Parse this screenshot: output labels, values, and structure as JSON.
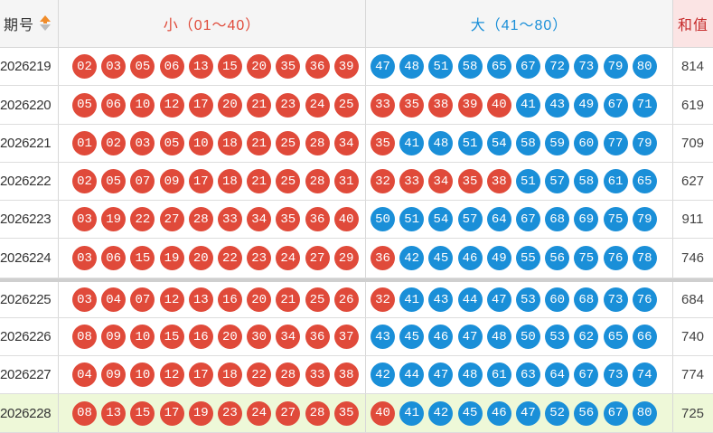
{
  "header": {
    "period_label": "期号",
    "small_label": "小（01～40）",
    "big_label": "大（41～80）",
    "sum_label": "和值"
  },
  "colors": {
    "red": "#e04a3a",
    "blue": "#1a8fd8"
  },
  "rows": [
    {
      "period": "2026219",
      "sum": "814",
      "small": [
        {
          "n": "02",
          "c": "r"
        },
        {
          "n": "03",
          "c": "r"
        },
        {
          "n": "05",
          "c": "r"
        },
        {
          "n": "06",
          "c": "r"
        },
        {
          "n": "13",
          "c": "r"
        },
        {
          "n": "15",
          "c": "r"
        },
        {
          "n": "20",
          "c": "r"
        },
        {
          "n": "35",
          "c": "r"
        },
        {
          "n": "36",
          "c": "r"
        },
        {
          "n": "39",
          "c": "r"
        }
      ],
      "big": [
        {
          "n": "47",
          "c": "b"
        },
        {
          "n": "48",
          "c": "b"
        },
        {
          "n": "51",
          "c": "b"
        },
        {
          "n": "58",
          "c": "b"
        },
        {
          "n": "65",
          "c": "b"
        },
        {
          "n": "67",
          "c": "b"
        },
        {
          "n": "72",
          "c": "b"
        },
        {
          "n": "73",
          "c": "b"
        },
        {
          "n": "79",
          "c": "b"
        },
        {
          "n": "80",
          "c": "b"
        }
      ]
    },
    {
      "period": "2026220",
      "sum": "619",
      "small": [
        {
          "n": "05",
          "c": "r"
        },
        {
          "n": "06",
          "c": "r"
        },
        {
          "n": "10",
          "c": "r"
        },
        {
          "n": "12",
          "c": "r"
        },
        {
          "n": "17",
          "c": "r"
        },
        {
          "n": "20",
          "c": "r"
        },
        {
          "n": "21",
          "c": "r"
        },
        {
          "n": "23",
          "c": "r"
        },
        {
          "n": "24",
          "c": "r"
        },
        {
          "n": "25",
          "c": "r"
        }
      ],
      "big": [
        {
          "n": "33",
          "c": "r"
        },
        {
          "n": "35",
          "c": "r"
        },
        {
          "n": "38",
          "c": "r"
        },
        {
          "n": "39",
          "c": "r"
        },
        {
          "n": "40",
          "c": "r"
        },
        {
          "n": "41",
          "c": "b"
        },
        {
          "n": "43",
          "c": "b"
        },
        {
          "n": "49",
          "c": "b"
        },
        {
          "n": "67",
          "c": "b"
        },
        {
          "n": "71",
          "c": "b"
        }
      ]
    },
    {
      "period": "2026221",
      "sum": "709",
      "small": [
        {
          "n": "01",
          "c": "r"
        },
        {
          "n": "02",
          "c": "r"
        },
        {
          "n": "03",
          "c": "r"
        },
        {
          "n": "05",
          "c": "r"
        },
        {
          "n": "10",
          "c": "r"
        },
        {
          "n": "18",
          "c": "r"
        },
        {
          "n": "21",
          "c": "r"
        },
        {
          "n": "25",
          "c": "r"
        },
        {
          "n": "28",
          "c": "r"
        },
        {
          "n": "34",
          "c": "r"
        }
      ],
      "big": [
        {
          "n": "35",
          "c": "r"
        },
        {
          "n": "41",
          "c": "b"
        },
        {
          "n": "48",
          "c": "b"
        },
        {
          "n": "51",
          "c": "b"
        },
        {
          "n": "54",
          "c": "b"
        },
        {
          "n": "58",
          "c": "b"
        },
        {
          "n": "59",
          "c": "b"
        },
        {
          "n": "60",
          "c": "b"
        },
        {
          "n": "77",
          "c": "b"
        },
        {
          "n": "79",
          "c": "b"
        }
      ]
    },
    {
      "period": "2026222",
      "sum": "627",
      "small": [
        {
          "n": "02",
          "c": "r"
        },
        {
          "n": "05",
          "c": "r"
        },
        {
          "n": "07",
          "c": "r"
        },
        {
          "n": "09",
          "c": "r"
        },
        {
          "n": "17",
          "c": "r"
        },
        {
          "n": "18",
          "c": "r"
        },
        {
          "n": "21",
          "c": "r"
        },
        {
          "n": "25",
          "c": "r"
        },
        {
          "n": "28",
          "c": "r"
        },
        {
          "n": "31",
          "c": "r"
        }
      ],
      "big": [
        {
          "n": "32",
          "c": "r"
        },
        {
          "n": "33",
          "c": "r"
        },
        {
          "n": "34",
          "c": "r"
        },
        {
          "n": "35",
          "c": "r"
        },
        {
          "n": "38",
          "c": "r"
        },
        {
          "n": "51",
          "c": "b"
        },
        {
          "n": "57",
          "c": "b"
        },
        {
          "n": "58",
          "c": "b"
        },
        {
          "n": "61",
          "c": "b"
        },
        {
          "n": "65",
          "c": "b"
        }
      ]
    },
    {
      "period": "2026223",
      "sum": "911",
      "small": [
        {
          "n": "03",
          "c": "r"
        },
        {
          "n": "19",
          "c": "r"
        },
        {
          "n": "22",
          "c": "r"
        },
        {
          "n": "27",
          "c": "r"
        },
        {
          "n": "28",
          "c": "r"
        },
        {
          "n": "33",
          "c": "r"
        },
        {
          "n": "34",
          "c": "r"
        },
        {
          "n": "35",
          "c": "r"
        },
        {
          "n": "36",
          "c": "r"
        },
        {
          "n": "40",
          "c": "r"
        }
      ],
      "big": [
        {
          "n": "50",
          "c": "b"
        },
        {
          "n": "51",
          "c": "b"
        },
        {
          "n": "54",
          "c": "b"
        },
        {
          "n": "57",
          "c": "b"
        },
        {
          "n": "64",
          "c": "b"
        },
        {
          "n": "67",
          "c": "b"
        },
        {
          "n": "68",
          "c": "b"
        },
        {
          "n": "69",
          "c": "b"
        },
        {
          "n": "75",
          "c": "b"
        },
        {
          "n": "79",
          "c": "b"
        }
      ]
    },
    {
      "period": "2026224",
      "sum": "746",
      "small": [
        {
          "n": "03",
          "c": "r"
        },
        {
          "n": "06",
          "c": "r"
        },
        {
          "n": "15",
          "c": "r"
        },
        {
          "n": "19",
          "c": "r"
        },
        {
          "n": "20",
          "c": "r"
        },
        {
          "n": "22",
          "c": "r"
        },
        {
          "n": "23",
          "c": "r"
        },
        {
          "n": "24",
          "c": "r"
        },
        {
          "n": "27",
          "c": "r"
        },
        {
          "n": "29",
          "c": "r"
        }
      ],
      "big": [
        {
          "n": "36",
          "c": "r"
        },
        {
          "n": "42",
          "c": "b"
        },
        {
          "n": "45",
          "c": "b"
        },
        {
          "n": "46",
          "c": "b"
        },
        {
          "n": "49",
          "c": "b"
        },
        {
          "n": "55",
          "c": "b"
        },
        {
          "n": "56",
          "c": "b"
        },
        {
          "n": "75",
          "c": "b"
        },
        {
          "n": "76",
          "c": "b"
        },
        {
          "n": "78",
          "c": "b"
        }
      ]
    },
    {
      "period": "2026225",
      "sum": "684",
      "small": [
        {
          "n": "03",
          "c": "r"
        },
        {
          "n": "04",
          "c": "r"
        },
        {
          "n": "07",
          "c": "r"
        },
        {
          "n": "12",
          "c": "r"
        },
        {
          "n": "13",
          "c": "r"
        },
        {
          "n": "16",
          "c": "r"
        },
        {
          "n": "20",
          "c": "r"
        },
        {
          "n": "21",
          "c": "r"
        },
        {
          "n": "25",
          "c": "r"
        },
        {
          "n": "26",
          "c": "r"
        }
      ],
      "big": [
        {
          "n": "32",
          "c": "r"
        },
        {
          "n": "41",
          "c": "b"
        },
        {
          "n": "43",
          "c": "b"
        },
        {
          "n": "44",
          "c": "b"
        },
        {
          "n": "47",
          "c": "b"
        },
        {
          "n": "53",
          "c": "b"
        },
        {
          "n": "60",
          "c": "b"
        },
        {
          "n": "68",
          "c": "b"
        },
        {
          "n": "73",
          "c": "b"
        },
        {
          "n": "76",
          "c": "b"
        }
      ]
    },
    {
      "period": "2026226",
      "sum": "740",
      "small": [
        {
          "n": "08",
          "c": "r"
        },
        {
          "n": "09",
          "c": "r"
        },
        {
          "n": "10",
          "c": "r"
        },
        {
          "n": "15",
          "c": "r"
        },
        {
          "n": "16",
          "c": "r"
        },
        {
          "n": "20",
          "c": "r"
        },
        {
          "n": "30",
          "c": "r"
        },
        {
          "n": "34",
          "c": "r"
        },
        {
          "n": "36",
          "c": "r"
        },
        {
          "n": "37",
          "c": "r"
        }
      ],
      "big": [
        {
          "n": "43",
          "c": "b"
        },
        {
          "n": "45",
          "c": "b"
        },
        {
          "n": "46",
          "c": "b"
        },
        {
          "n": "47",
          "c": "b"
        },
        {
          "n": "48",
          "c": "b"
        },
        {
          "n": "50",
          "c": "b"
        },
        {
          "n": "53",
          "c": "b"
        },
        {
          "n": "62",
          "c": "b"
        },
        {
          "n": "65",
          "c": "b"
        },
        {
          "n": "66",
          "c": "b"
        }
      ]
    },
    {
      "period": "2026227",
      "sum": "774",
      "small": [
        {
          "n": "04",
          "c": "r"
        },
        {
          "n": "09",
          "c": "r"
        },
        {
          "n": "10",
          "c": "r"
        },
        {
          "n": "12",
          "c": "r"
        },
        {
          "n": "17",
          "c": "r"
        },
        {
          "n": "18",
          "c": "r"
        },
        {
          "n": "22",
          "c": "r"
        },
        {
          "n": "28",
          "c": "r"
        },
        {
          "n": "33",
          "c": "r"
        },
        {
          "n": "38",
          "c": "r"
        }
      ],
      "big": [
        {
          "n": "42",
          "c": "b"
        },
        {
          "n": "44",
          "c": "b"
        },
        {
          "n": "47",
          "c": "b"
        },
        {
          "n": "48",
          "c": "b"
        },
        {
          "n": "61",
          "c": "b"
        },
        {
          "n": "63",
          "c": "b"
        },
        {
          "n": "64",
          "c": "b"
        },
        {
          "n": "67",
          "c": "b"
        },
        {
          "n": "73",
          "c": "b"
        },
        {
          "n": "74",
          "c": "b"
        }
      ]
    },
    {
      "period": "2026228",
      "sum": "725",
      "small": [
        {
          "n": "08",
          "c": "r"
        },
        {
          "n": "13",
          "c": "r"
        },
        {
          "n": "15",
          "c": "r"
        },
        {
          "n": "17",
          "c": "r"
        },
        {
          "n": "19",
          "c": "r"
        },
        {
          "n": "23",
          "c": "r"
        },
        {
          "n": "24",
          "c": "r"
        },
        {
          "n": "27",
          "c": "r"
        },
        {
          "n": "28",
          "c": "r"
        },
        {
          "n": "35",
          "c": "r"
        }
      ],
      "big": [
        {
          "n": "40",
          "c": "r"
        },
        {
          "n": "41",
          "c": "b"
        },
        {
          "n": "42",
          "c": "b"
        },
        {
          "n": "45",
          "c": "b"
        },
        {
          "n": "46",
          "c": "b"
        },
        {
          "n": "47",
          "c": "b"
        },
        {
          "n": "52",
          "c": "b"
        },
        {
          "n": "56",
          "c": "b"
        },
        {
          "n": "67",
          "c": "b"
        },
        {
          "n": "80",
          "c": "b"
        }
      ]
    }
  ]
}
